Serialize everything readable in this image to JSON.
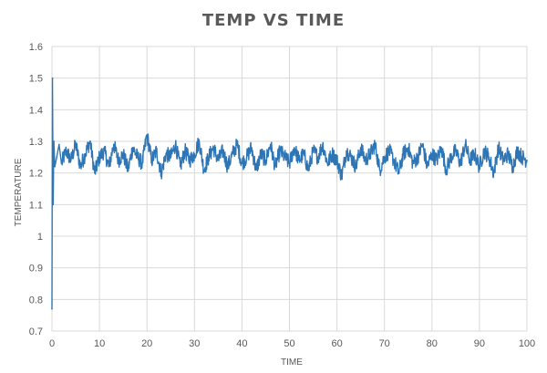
{
  "chart_data": {
    "type": "line",
    "title": "TEMP VS TIME",
    "xlabel": "TIME",
    "ylabel": "TEMPERATURE",
    "xlim": [
      0,
      100
    ],
    "ylim": [
      0.7,
      1.6
    ],
    "xticks": [
      "0",
      "10",
      "20",
      "30",
      "40",
      "50",
      "60",
      "70",
      "80",
      "90",
      "100"
    ],
    "yticks": [
      "0.7",
      "0.8",
      "0.9",
      "1",
      "1.1",
      "1.2",
      "1.3",
      "1.4",
      "1.5",
      "1.6"
    ],
    "grid": true,
    "colors": {
      "series": "#2E75B6",
      "grid": "#d9d9d9",
      "text": "#595959"
    },
    "series": [
      {
        "x": [
          0,
          0.1,
          0.25,
          0.4,
          0.6,
          1,
          1.5,
          2,
          3,
          4,
          5,
          6,
          7,
          8,
          9,
          10,
          11,
          12,
          13,
          14,
          15,
          16,
          17,
          18,
          19,
          20,
          21,
          22,
          23,
          24,
          25,
          26,
          27,
          28,
          29,
          30,
          31,
          32,
          33,
          34,
          35,
          36,
          37,
          38,
          39,
          40,
          41,
          42,
          43,
          44,
          45,
          46,
          47,
          48,
          49,
          50,
          51,
          52,
          53,
          54,
          55,
          56,
          57,
          58,
          59,
          60,
          61,
          62,
          63,
          64,
          65,
          66,
          67,
          68,
          69,
          70,
          71,
          72,
          73,
          74,
          75,
          76,
          77,
          78,
          79,
          80,
          81,
          82,
          83,
          84,
          85,
          86,
          87,
          88,
          89,
          90,
          91,
          92,
          93,
          94,
          95,
          96,
          97,
          98,
          99,
          100
        ],
        "values": [
          0.77,
          1.5,
          1.1,
          1.3,
          1.22,
          1.25,
          1.29,
          1.23,
          1.27,
          1.24,
          1.29,
          1.22,
          1.26,
          1.3,
          1.2,
          1.25,
          1.27,
          1.22,
          1.29,
          1.24,
          1.26,
          1.21,
          1.28,
          1.25,
          1.23,
          1.32,
          1.24,
          1.27,
          1.2,
          1.26,
          1.25,
          1.29,
          1.22,
          1.27,
          1.24,
          1.26,
          1.3,
          1.21,
          1.25,
          1.28,
          1.24,
          1.27,
          1.22,
          1.26,
          1.29,
          1.23,
          1.25,
          1.28,
          1.21,
          1.26,
          1.24,
          1.29,
          1.22,
          1.27,
          1.25,
          1.23,
          1.28,
          1.24,
          1.26,
          1.21,
          1.27,
          1.25,
          1.29,
          1.23,
          1.26,
          1.24,
          1.19,
          1.27,
          1.25,
          1.22,
          1.28,
          1.24,
          1.26,
          1.29,
          1.21,
          1.25,
          1.27,
          1.24,
          1.2,
          1.26,
          1.28,
          1.23,
          1.25,
          1.29,
          1.22,
          1.26,
          1.24,
          1.28,
          1.21,
          1.25,
          1.27,
          1.23,
          1.29,
          1.24,
          1.26,
          1.22,
          1.27,
          1.25,
          1.2,
          1.28,
          1.24,
          1.26,
          1.22,
          1.27,
          1.25,
          1.24
        ]
      }
    ]
  }
}
